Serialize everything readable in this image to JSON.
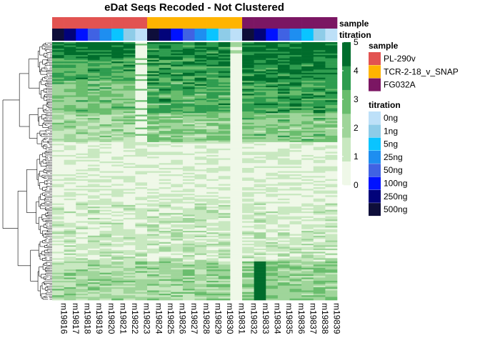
{
  "chart_data": {
    "type": "heatmap",
    "title": "eDat Seqs Recoded - Not Clustered",
    "columns": [
      "m19816",
      "m19817",
      "m19818",
      "m19819",
      "m19820",
      "m19821",
      "m19822",
      "m19823",
      "m19824",
      "m19825",
      "m19826",
      "m19827",
      "m19828",
      "m19829",
      "m19830",
      "m19831",
      "m19832",
      "m19833",
      "m19834",
      "m19835",
      "m19836",
      "m19837",
      "m19838",
      "m19839"
    ],
    "column_annotations": {
      "sample_label": "sample",
      "titration_label": "titration",
      "sample": [
        "PL-290v",
        "PL-290v",
        "PL-290v",
        "PL-290v",
        "PL-290v",
        "PL-290v",
        "PL-290v",
        "PL-290v",
        "TCR-2-18_v_SNAP",
        "TCR-2-18_v_SNAP",
        "TCR-2-18_v_SNAP",
        "TCR-2-18_v_SNAP",
        "TCR-2-18_v_SNAP",
        "TCR-2-18_v_SNAP",
        "TCR-2-18_v_SNAP",
        "TCR-2-18_v_SNAP",
        "FG032A",
        "FG032A",
        "FG032A",
        "FG032A",
        "FG032A",
        "FG032A",
        "FG032A",
        "FG032A"
      ],
      "titration": [
        "500ng",
        "250ng",
        "100ng",
        "50ng",
        "25ng",
        "5ng",
        "1ng",
        "0ng",
        "500ng",
        "250ng",
        "100ng",
        "50ng",
        "25ng",
        "5ng",
        "1ng",
        "0ng",
        "500ng",
        "250ng",
        "100ng",
        "50ng",
        "25ng",
        "5ng",
        "1ng",
        "0ng"
      ]
    },
    "color_scale": {
      "min": 0,
      "max": 5,
      "ticks": [
        "0",
        "1",
        "2",
        "3",
        "4",
        "5"
      ],
      "colors": [
        "#eff8e8",
        "#c8e8c0",
        "#9fd59a",
        "#69bd6d",
        "#2e9c4f",
        "#006d2c"
      ]
    },
    "legends": {
      "sample": {
        "title": "sample",
        "items": [
          {
            "label": "PL-290v",
            "color": "#e25351"
          },
          {
            "label": "TCR-2-18_v_SNAP",
            "color": "#ffb400"
          },
          {
            "label": "FG032A",
            "color": "#7b1663"
          }
        ]
      },
      "titration": {
        "title": "titration",
        "items": [
          {
            "label": "0ng",
            "color": "#bde0f8"
          },
          {
            "label": "1ng",
            "color": "#8ecce8"
          },
          {
            "label": "5ng",
            "color": "#0ac4ff"
          },
          {
            "label": "25ng",
            "color": "#1e8ef0"
          },
          {
            "label": "50ng",
            "color": "#4062e3"
          },
          {
            "label": "100ng",
            "color": "#0012ff"
          },
          {
            "label": "250ng",
            "color": "#02037a"
          },
          {
            "label": "500ng",
            "color": "#0e0e3a"
          }
        ]
      }
    },
    "row_dendrogram": true,
    "column_dendrogram": false,
    "n_rows": 160
  }
}
